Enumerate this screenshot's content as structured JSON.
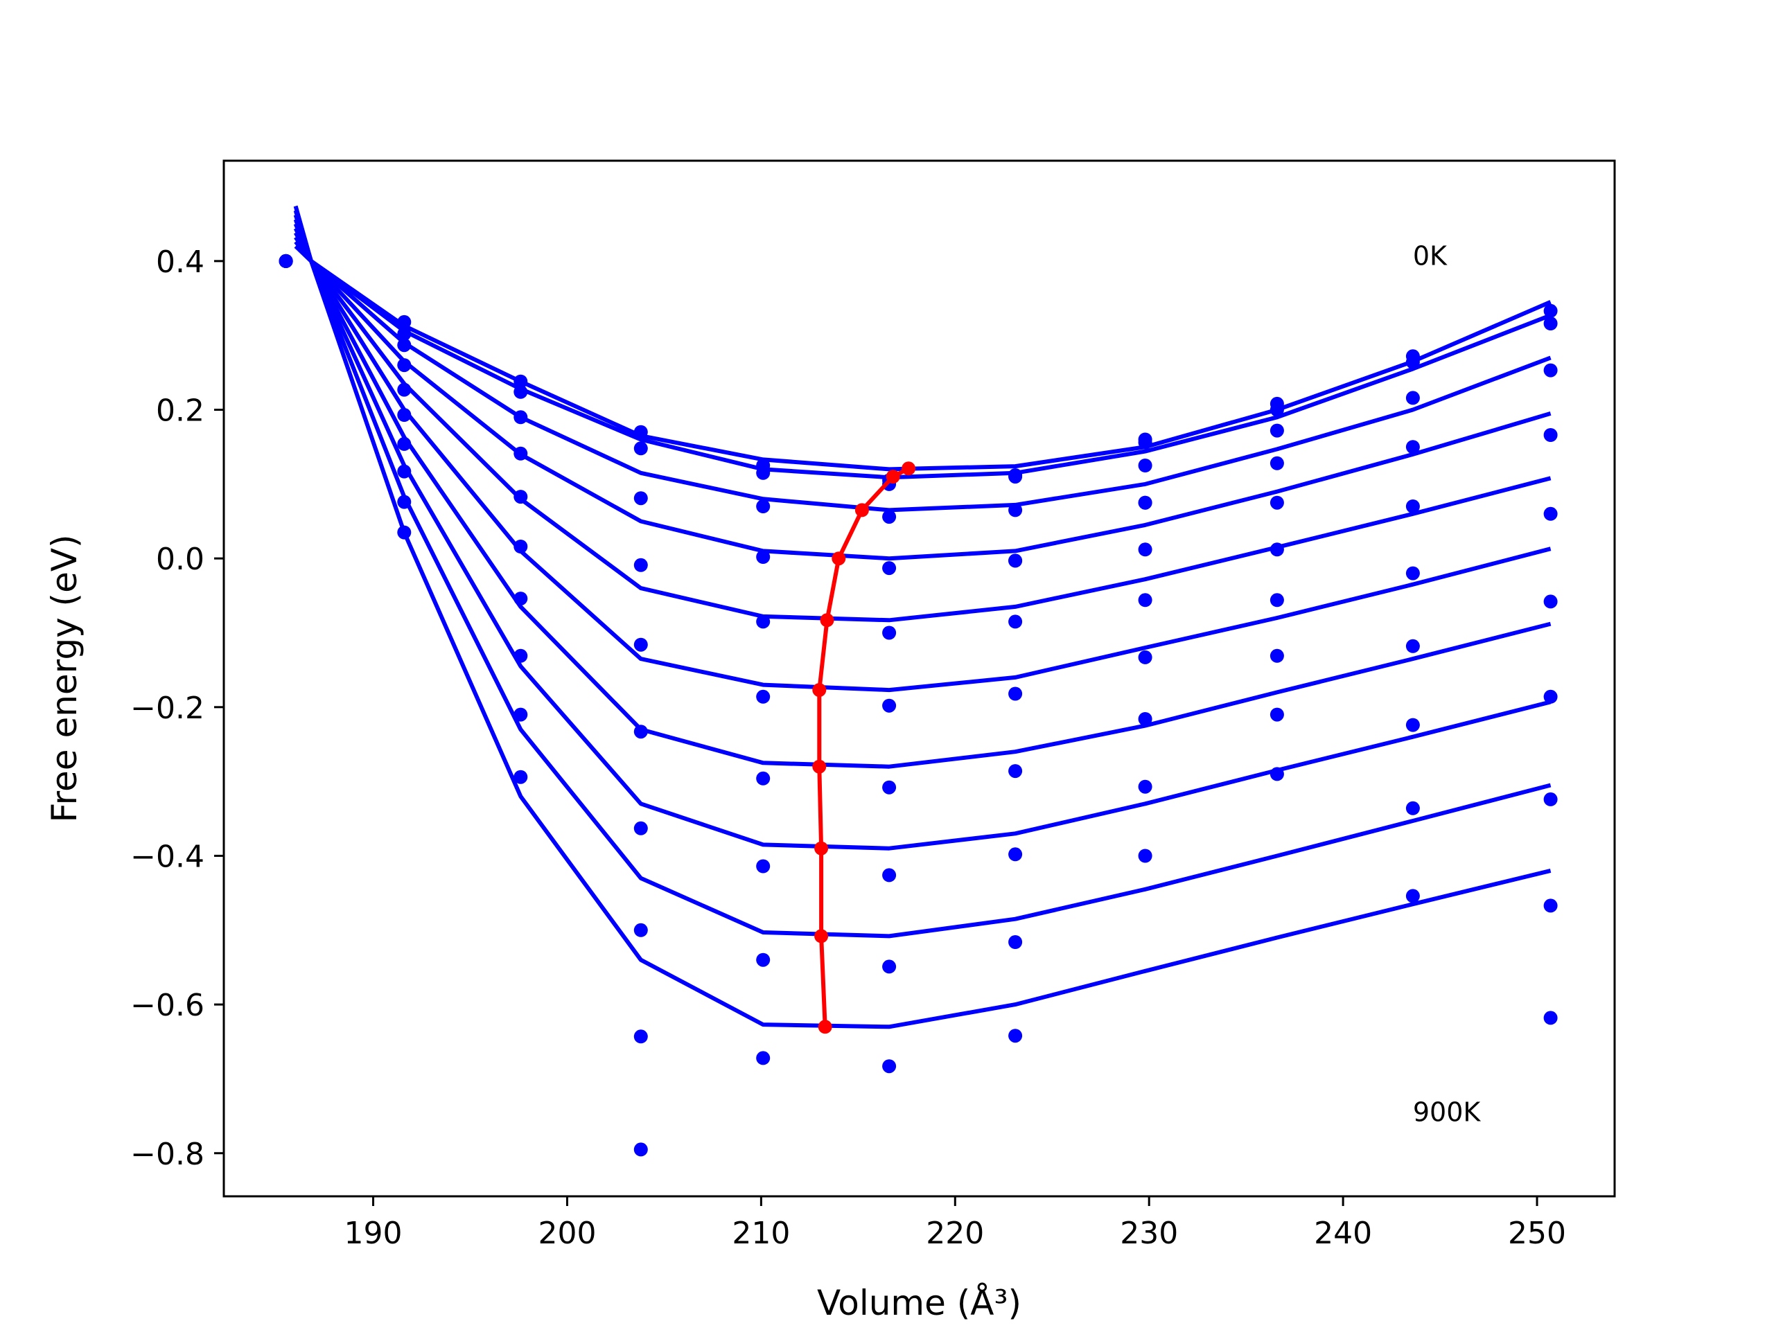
{
  "chart_data": {
    "type": "scatter",
    "title": "",
    "xlabel": "Volume (Å³)",
    "ylabel": "Free energy (eV)",
    "xlim": [
      182.3,
      254.0
    ],
    "ylim": [
      -0.858,
      0.535
    ],
    "xticks": [
      190,
      200,
      210,
      220,
      230,
      240,
      250
    ],
    "xtick_labels": [
      "190",
      "200",
      "210",
      "220",
      "230",
      "240",
      "250"
    ],
    "yticks": [
      -0.8,
      -0.6,
      -0.4,
      -0.2,
      0.0,
      0.2,
      0.4
    ],
    "ytick_labels": [
      "−0.8",
      "−0.6",
      "−0.4",
      "−0.2",
      "0.0",
      "0.2",
      "0.4"
    ],
    "grid": false,
    "annotations": [
      {
        "text": "0K",
        "x": 243.6,
        "y": 0.395
      },
      {
        "text": "900K",
        "x": 243.6,
        "y": -0.757
      }
    ],
    "colors": {
      "points": "#0000ff",
      "fit": "#0000ff",
      "minimum": "#ff0000"
    },
    "volumes": [
      185.5,
      191.6,
      197.6,
      203.8,
      210.1,
      216.6,
      223.1,
      229.8,
      236.6,
      243.6,
      250.7
    ],
    "series": [
      {
        "energies": [
          0.4,
          0.318,
          0.238,
          0.17,
          0.125,
          0.105,
          0.112,
          0.16,
          0.208,
          0.272,
          0.333
        ]
      },
      {
        "energies": [
          0.4,
          0.302,
          0.224,
          0.148,
          0.115,
          0.1,
          0.11,
          0.156,
          0.2,
          0.264,
          0.316
        ]
      },
      {
        "energies": [
          0.4,
          0.287,
          0.19,
          0.081,
          0.07,
          0.056,
          0.065,
          0.075,
          0.172,
          0.216,
          0.253
        ]
      },
      {
        "energies": [
          0.4,
          0.26,
          0.141,
          -0.009,
          0.002,
          -0.013,
          -0.003,
          0.125,
          0.128,
          0.15,
          0.166
        ]
      },
      {
        "energies": [
          0.4,
          0.227,
          0.083,
          -0.116,
          -0.085,
          -0.1,
          -0.003,
          0.075,
          0.075,
          0.07,
          0.06
        ]
      },
      {
        "energies": [
          0.4,
          0.193,
          0.016,
          -0.233,
          -0.186,
          -0.198,
          -0.085,
          0.012,
          0.012,
          -0.02,
          -0.058
        ]
      },
      {
        "energies": [
          0.4,
          0.154,
          -0.054,
          -0.363,
          -0.296,
          -0.308,
          -0.182,
          -0.056,
          -0.056,
          -0.118,
          -0.186
        ]
      },
      {
        "energies": [
          0.4,
          0.117,
          -0.131,
          -0.5,
          -0.414,
          -0.426,
          -0.286,
          -0.133,
          -0.131,
          -0.224,
          -0.324
        ]
      },
      {
        "energies": [
          0.4,
          0.076,
          -0.21,
          -0.643,
          -0.54,
          -0.549,
          -0.398,
          -0.216,
          -0.21,
          -0.336,
          -0.467
        ]
      },
      {
        "energies": [
          0.4,
          0.035,
          -0.294,
          -0.795,
          -0.672,
          -0.683,
          -0.516,
          -0.307,
          -0.29,
          -0.454,
          -0.618
        ]
      },
      {
        "energies": [
          null,
          null,
          null,
          null,
          null,
          null,
          -0.642,
          -0.4,
          null,
          null,
          null
        ]
      }
    ],
    "fit_curves": [
      {
        "points": [
          [
            186.0,
            0.474
          ],
          [
            186.8,
            0.4
          ],
          [
            191.6,
            0.313
          ],
          [
            197.6,
            0.238
          ],
          [
            203.8,
            0.165
          ],
          [
            210.1,
            0.133
          ],
          [
            216.6,
            0.12
          ],
          [
            223.1,
            0.124
          ],
          [
            229.8,
            0.15
          ],
          [
            236.6,
            0.2
          ],
          [
            243.6,
            0.265
          ],
          [
            250.7,
            0.345
          ]
        ]
      },
      {
        "points": [
          [
            186.0,
            0.468
          ],
          [
            186.8,
            0.4
          ],
          [
            191.6,
            0.306
          ],
          [
            197.6,
            0.228
          ],
          [
            203.8,
            0.16
          ],
          [
            210.1,
            0.12
          ],
          [
            216.6,
            0.109
          ],
          [
            223.1,
            0.115
          ],
          [
            229.8,
            0.144
          ],
          [
            236.6,
            0.19
          ],
          [
            243.6,
            0.255
          ],
          [
            250.7,
            0.327
          ]
        ]
      },
      {
        "points": [
          [
            186.0,
            0.462
          ],
          [
            186.8,
            0.4
          ],
          [
            191.6,
            0.29
          ],
          [
            197.6,
            0.19
          ],
          [
            203.8,
            0.115
          ],
          [
            210.1,
            0.08
          ],
          [
            216.6,
            0.065
          ],
          [
            223.1,
            0.072
          ],
          [
            229.8,
            0.1
          ],
          [
            236.6,
            0.147
          ],
          [
            243.6,
            0.2
          ],
          [
            250.7,
            0.27
          ]
        ]
      },
      {
        "points": [
          [
            186.0,
            0.456
          ],
          [
            186.8,
            0.4
          ],
          [
            191.6,
            0.265
          ],
          [
            197.6,
            0.14
          ],
          [
            203.8,
            0.05
          ],
          [
            210.1,
            0.01
          ],
          [
            216.6,
            0.0
          ],
          [
            223.1,
            0.01
          ],
          [
            229.8,
            0.045
          ],
          [
            236.6,
            0.09
          ],
          [
            243.6,
            0.14
          ],
          [
            250.7,
            0.195
          ]
        ]
      },
      {
        "points": [
          [
            186.0,
            0.45
          ],
          [
            186.8,
            0.4
          ],
          [
            191.6,
            0.235
          ],
          [
            197.6,
            0.08
          ],
          [
            203.8,
            -0.04
          ],
          [
            210.1,
            -0.078
          ],
          [
            216.6,
            -0.083
          ],
          [
            223.1,
            -0.065
          ],
          [
            229.8,
            -0.028
          ],
          [
            236.6,
            0.015
          ],
          [
            243.6,
            0.06
          ],
          [
            250.7,
            0.108
          ]
        ]
      },
      {
        "points": [
          [
            186.0,
            0.444
          ],
          [
            186.8,
            0.4
          ],
          [
            191.6,
            0.2
          ],
          [
            197.6,
            0.01
          ],
          [
            203.8,
            -0.135
          ],
          [
            210.1,
            -0.17
          ],
          [
            216.6,
            -0.177
          ],
          [
            223.1,
            -0.16
          ],
          [
            229.8,
            -0.12
          ],
          [
            236.6,
            -0.08
          ],
          [
            243.6,
            -0.035
          ],
          [
            250.7,
            0.013
          ]
        ]
      },
      {
        "points": [
          [
            186.0,
            0.438
          ],
          [
            186.8,
            0.4
          ],
          [
            191.6,
            0.163
          ],
          [
            197.6,
            -0.065
          ],
          [
            203.8,
            -0.23
          ],
          [
            210.1,
            -0.275
          ],
          [
            216.6,
            -0.28
          ],
          [
            223.1,
            -0.26
          ],
          [
            229.8,
            -0.225
          ],
          [
            236.6,
            -0.18
          ],
          [
            243.6,
            -0.135
          ],
          [
            250.7,
            -0.088
          ]
        ]
      },
      {
        "points": [
          [
            186.0,
            0.432
          ],
          [
            186.8,
            0.4
          ],
          [
            191.6,
            0.125
          ],
          [
            197.6,
            -0.145
          ],
          [
            203.8,
            -0.33
          ],
          [
            210.1,
            -0.385
          ],
          [
            216.6,
            -0.39
          ],
          [
            223.1,
            -0.37
          ],
          [
            229.8,
            -0.33
          ],
          [
            236.6,
            -0.285
          ],
          [
            243.6,
            -0.24
          ],
          [
            250.7,
            -0.193
          ]
        ]
      },
      {
        "points": [
          [
            186.0,
            0.426
          ],
          [
            186.8,
            0.4
          ],
          [
            191.6,
            0.083
          ],
          [
            197.6,
            -0.23
          ],
          [
            203.8,
            -0.43
          ],
          [
            210.1,
            -0.503
          ],
          [
            216.6,
            -0.508
          ],
          [
            223.1,
            -0.485
          ],
          [
            229.8,
            -0.445
          ],
          [
            236.6,
            -0.4
          ],
          [
            243.6,
            -0.353
          ],
          [
            250.7,
            -0.305
          ]
        ]
      },
      {
        "points": [
          [
            186.0,
            0.42
          ],
          [
            186.8,
            0.4
          ],
          [
            191.6,
            0.035
          ],
          [
            197.6,
            -0.32
          ],
          [
            203.8,
            -0.54
          ],
          [
            210.1,
            -0.627
          ],
          [
            216.6,
            -0.63
          ],
          [
            223.1,
            -0.6
          ],
          [
            229.8,
            -0.555
          ],
          [
            236.6,
            -0.51
          ],
          [
            243.6,
            -0.465
          ],
          [
            250.7,
            -0.42
          ]
        ]
      }
    ],
    "minimum_line": {
      "points": [
        [
          217.6,
          0.121
        ],
        [
          216.8,
          0.11
        ],
        [
          215.2,
          0.065
        ],
        [
          214.0,
          0.0
        ],
        [
          213.4,
          -0.083
        ],
        [
          213.0,
          -0.177
        ],
        [
          213.0,
          -0.28
        ],
        [
          213.1,
          -0.39
        ],
        [
          213.1,
          -0.508
        ],
        [
          213.3,
          -0.63
        ]
      ]
    }
  }
}
